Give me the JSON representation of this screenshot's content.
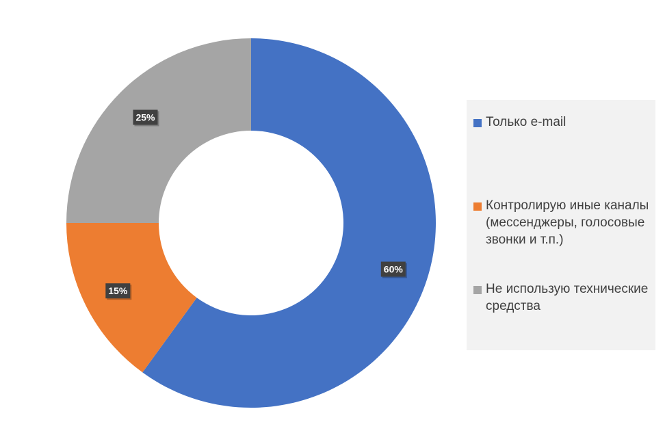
{
  "chart_data": {
    "type": "pie",
    "donut": true,
    "categories": [
      "Только e-mail",
      "Контролирую иные каналы (мессенджеры, голосовые звонки и т.п.)",
      "Не использую технические средства"
    ],
    "values": [
      60,
      15,
      25
    ],
    "data_labels": [
      "60%",
      "15%",
      "25%"
    ],
    "colors": [
      "#4472c4",
      "#ed7d31",
      "#a5a5a5"
    ],
    "legend_position": "right",
    "label_style": {
      "background": "#404040",
      "color": "#ffffff"
    }
  }
}
